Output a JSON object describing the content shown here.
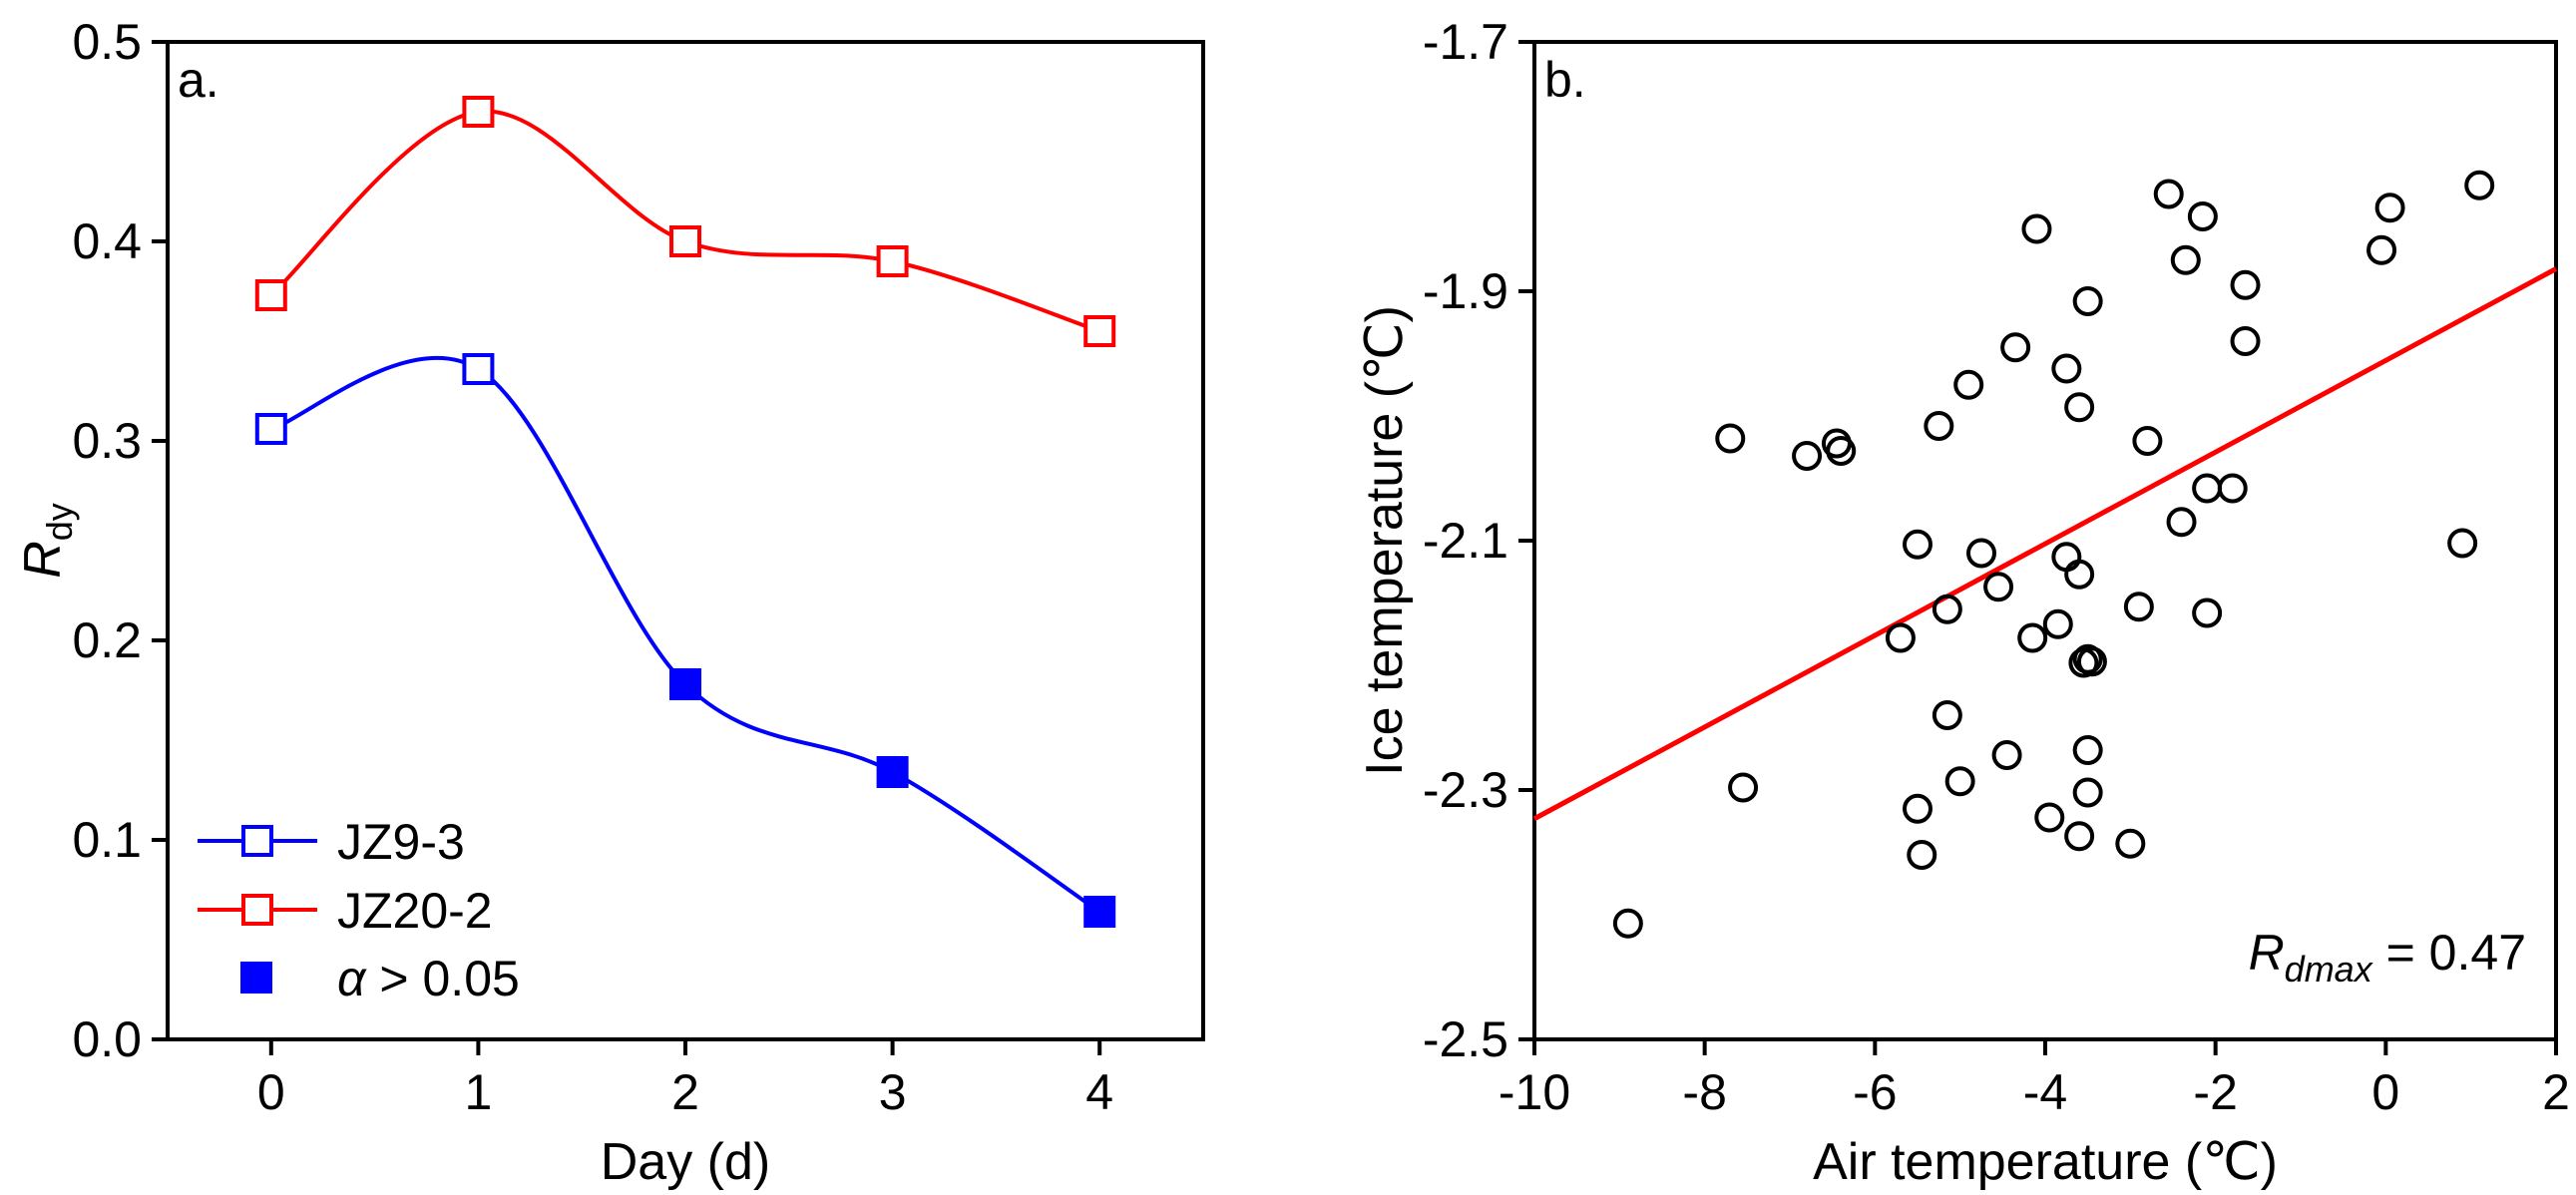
{
  "chart_data": [
    {
      "type": "line",
      "panel_label": "a.",
      "xlabel": "Day (d)",
      "ylabel_main": "R",
      "ylabel_sub": "dy",
      "xlim": [
        -0.5,
        4.5
      ],
      "ylim": [
        0.0,
        0.5
      ],
      "xticks": [
        0,
        1,
        2,
        3,
        4
      ],
      "yticks": [
        0.0,
        0.1,
        0.2,
        0.3,
        0.4,
        0.5
      ],
      "ytick_labels": [
        "0.0",
        "0.1",
        "0.2",
        "0.3",
        "0.4",
        "0.5"
      ],
      "x": [
        0,
        1,
        2,
        3,
        4
      ],
      "series": [
        {
          "name": "JZ9-3",
          "color": "#0000ff",
          "values": [
            0.306,
            0.336,
            0.178,
            0.134,
            0.064
          ],
          "filled": [
            false,
            false,
            true,
            true,
            true
          ]
        },
        {
          "name": "JZ20-2",
          "color": "#ff0000",
          "values": [
            0.373,
            0.465,
            0.4,
            0.39,
            0.355
          ],
          "filled": [
            false,
            false,
            false,
            false,
            false
          ]
        }
      ],
      "legend": [
        {
          "label": "JZ9-3",
          "color": "#0000ff",
          "marker": "open-square-line"
        },
        {
          "label": "JZ20-2",
          "color": "#ff0000",
          "marker": "open-square-line"
        },
        {
          "label_italic": "α",
          "label_rest": " > 0.05",
          "color": "#0000ff",
          "marker": "filled-square"
        }
      ],
      "legend_position": "bottom-left"
    },
    {
      "type": "scatter",
      "panel_label": "b.",
      "xlabel": "Air temperature (℃)",
      "ylabel": "Ice temperature (℃)",
      "xlim": [
        -10,
        2
      ],
      "ylim": [
        -2.5,
        -1.7
      ],
      "xticks": [
        -10,
        -8,
        -6,
        -4,
        -2,
        0,
        2
      ],
      "xtick_labels": [
        "-10",
        "-8",
        "-6",
        "-4",
        "-2",
        "0",
        "2"
      ],
      "yticks": [
        -2.5,
        -2.3,
        -2.1,
        -1.9,
        -1.7
      ],
      "ytick_labels": [
        "-2.5",
        "-2.3",
        "-2.1",
        "-1.9",
        "-1.7"
      ],
      "points": [
        [
          -8.9,
          -2.407
        ],
        [
          -7.7,
          -2.018
        ],
        [
          -7.55,
          -2.298
        ],
        [
          -6.8,
          -2.032
        ],
        [
          -6.45,
          -2.022
        ],
        [
          -6.4,
          -2.028
        ],
        [
          -5.7,
          -2.178
        ],
        [
          -5.5,
          -2.103
        ],
        [
          -5.5,
          -2.315
        ],
        [
          -5.45,
          -2.352
        ],
        [
          -5.25,
          -2.008
        ],
        [
          -5.15,
          -2.155
        ],
        [
          -5.15,
          -2.24
        ],
        [
          -5.0,
          -2.293
        ],
        [
          -4.9,
          -1.975
        ],
        [
          -4.75,
          -2.11
        ],
        [
          -4.55,
          -2.137
        ],
        [
          -4.45,
          -2.272
        ],
        [
          -4.35,
          -1.945
        ],
        [
          -4.15,
          -2.178
        ],
        [
          -4.1,
          -1.85
        ],
        [
          -3.95,
          -2.322
        ],
        [
          -3.85,
          -2.167
        ],
        [
          -3.75,
          -1.962
        ],
        [
          -3.75,
          -2.113
        ],
        [
          -3.6,
          -1.993
        ],
        [
          -3.6,
          -2.127
        ],
        [
          -3.6,
          -2.337
        ],
        [
          -3.55,
          -2.198
        ],
        [
          -3.5,
          -2.195
        ],
        [
          -3.5,
          -1.908
        ],
        [
          -3.5,
          -2.268
        ],
        [
          -3.5,
          -2.302
        ],
        [
          -3.45,
          -2.197
        ],
        [
          -3.0,
          -2.343
        ],
        [
          -2.9,
          -2.153
        ],
        [
          -2.8,
          -2.02
        ],
        [
          -2.55,
          -1.822
        ],
        [
          -2.4,
          -2.085
        ],
        [
          -2.35,
          -1.875
        ],
        [
          -2.15,
          -1.84
        ],
        [
          -2.1,
          -2.058
        ],
        [
          -2.1,
          -2.158
        ],
        [
          -1.8,
          -2.058
        ],
        [
          -1.65,
          -1.895
        ],
        [
          -1.65,
          -1.94
        ],
        [
          -0.05,
          -1.867
        ],
        [
          0.05,
          -1.833
        ],
        [
          0.9,
          -2.102
        ],
        [
          1.1,
          -1.815
        ]
      ],
      "point_color": "#000000",
      "fit_line": {
        "x": [
          -10,
          2
        ],
        "y": [
          -2.323,
          -1.882
        ],
        "color": "#ff0000"
      },
      "annotation_main": "R",
      "annotation_sub": "dmax",
      "annotation_value": " = 0.47",
      "annotation_position": "bottom-right"
    }
  ]
}
